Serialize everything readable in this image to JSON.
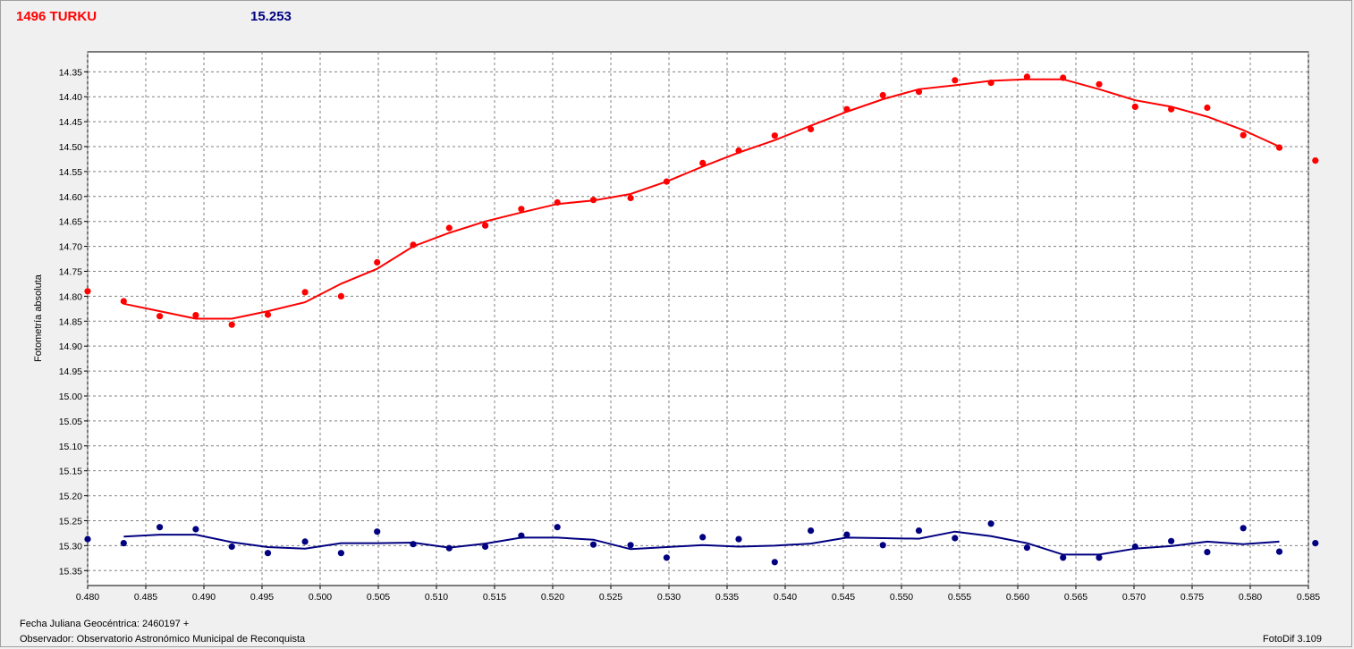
{
  "header": {
    "object_name": "1496 TURKU",
    "comparison_value": "15.253"
  },
  "footer": {
    "jd_label": "Fecha Juliana Geocéntrica: 2460197 +",
    "observer_label": "Observador: Observatorio Astronómico Municipal de Reconquista",
    "software": "FotoDif 3.109"
  },
  "colors": {
    "series_target": "#ff0000",
    "series_comparison": "#000080",
    "grid": "#808080",
    "plot_bg": "#ffffff"
  },
  "chart_data": {
    "type": "scatter",
    "ylabel": "Fotometría absoluta",
    "xlabel": "",
    "xlim": [
      0.48,
      0.585
    ],
    "ylim": [
      15.38,
      14.31
    ],
    "y_inverted": true,
    "x_ticks": [
      "0.480",
      "0.485",
      "0.490",
      "0.495",
      "0.500",
      "0.505",
      "0.510",
      "0.515",
      "0.520",
      "0.525",
      "0.530",
      "0.535",
      "0.540",
      "0.545",
      "0.550",
      "0.555",
      "0.560",
      "0.565",
      "0.570",
      "0.575",
      "0.580",
      "0.585"
    ],
    "y_ticks": [
      "14.35",
      "14.40",
      "14.45",
      "14.50",
      "14.55",
      "14.60",
      "14.65",
      "14.70",
      "14.75",
      "14.80",
      "14.85",
      "14.90",
      "14.95",
      "15.00",
      "15.05",
      "15.10",
      "15.15",
      "15.20",
      "15.25",
      "15.30",
      "15.35"
    ],
    "grid": true,
    "series": [
      {
        "color": "#ff0000",
        "points": {
          "x": [
            0.48,
            0.4831,
            0.4862,
            0.4893,
            0.4924,
            0.4955,
            0.4987,
            0.5018,
            0.5049,
            0.508,
            0.5111,
            0.5142,
            0.5173,
            0.5204,
            0.5235,
            0.5267,
            0.5298,
            0.5329,
            0.536,
            0.5391,
            0.5422,
            0.5453,
            0.5484,
            0.5515,
            0.5546,
            0.5577,
            0.5608,
            0.5639,
            0.567,
            0.5701,
            0.5732,
            0.5763,
            0.5794,
            0.5825,
            0.5856
          ],
          "y": [
            14.79,
            14.81,
            14.84,
            14.838,
            14.857,
            14.837,
            14.792,
            14.8,
            14.732,
            14.697,
            14.663,
            14.658,
            14.625,
            14.612,
            14.607,
            14.603,
            14.57,
            14.533,
            14.508,
            14.478,
            14.465,
            14.425,
            14.397,
            14.39,
            14.367,
            14.372,
            14.36,
            14.362,
            14.375,
            14.42,
            14.425,
            14.422,
            14.477,
            14.502,
            14.528
          ]
        },
        "fit": {
          "x": [
            0.4831,
            0.4862,
            0.4893,
            0.4924,
            0.4955,
            0.4987,
            0.5018,
            0.5049,
            0.508,
            0.5111,
            0.5142,
            0.5173,
            0.5204,
            0.5235,
            0.5267,
            0.5298,
            0.5329,
            0.536,
            0.5391,
            0.5422,
            0.5453,
            0.5484,
            0.5515,
            0.5546,
            0.5577,
            0.5608,
            0.5639,
            0.567,
            0.5701,
            0.5732,
            0.5763,
            0.5794,
            0.5825
          ],
          "y": [
            14.815,
            14.83,
            14.845,
            14.845,
            14.83,
            14.812,
            14.775,
            14.745,
            14.7,
            14.673,
            14.65,
            14.632,
            14.615,
            14.608,
            14.595,
            14.57,
            14.54,
            14.512,
            14.487,
            14.458,
            14.43,
            14.405,
            14.385,
            14.377,
            14.368,
            14.365,
            14.365,
            14.385,
            14.407,
            14.42,
            14.44,
            14.467,
            14.5
          ]
        }
      },
      {
        "color": "#000080",
        "points": {
          "x": [
            0.48,
            0.4831,
            0.4862,
            0.4893,
            0.4924,
            0.4955,
            0.4987,
            0.5018,
            0.5049,
            0.508,
            0.5111,
            0.5142,
            0.5173,
            0.5204,
            0.5235,
            0.5267,
            0.5298,
            0.5329,
            0.536,
            0.5391,
            0.5422,
            0.5453,
            0.5484,
            0.5515,
            0.5546,
            0.5577,
            0.5608,
            0.5639,
            0.567,
            0.5701,
            0.5732,
            0.5763,
            0.5794,
            0.5825,
            0.5856
          ],
          "y": [
            15.287,
            15.295,
            15.263,
            15.267,
            15.302,
            15.315,
            15.292,
            15.315,
            15.272,
            15.297,
            15.305,
            15.302,
            15.28,
            15.263,
            15.298,
            15.299,
            15.324,
            15.283,
            15.287,
            15.333,
            15.27,
            15.278,
            15.299,
            15.27,
            15.285,
            15.256,
            15.304,
            15.324,
            15.324,
            15.302,
            15.291,
            15.313,
            15.265,
            15.312,
            15.295
          ]
        },
        "fit": {
          "x": [
            0.4831,
            0.4862,
            0.4893,
            0.4924,
            0.4955,
            0.4987,
            0.5018,
            0.5049,
            0.508,
            0.5111,
            0.5142,
            0.5173,
            0.5204,
            0.5235,
            0.5267,
            0.5298,
            0.5329,
            0.536,
            0.5391,
            0.5422,
            0.5453,
            0.5484,
            0.5515,
            0.5546,
            0.5577,
            0.5608,
            0.5639,
            0.567,
            0.5701,
            0.5732,
            0.5763,
            0.5794,
            0.5825
          ],
          "y": [
            15.282,
            15.278,
            15.278,
            15.293,
            15.303,
            15.306,
            15.295,
            15.295,
            15.294,
            15.304,
            15.296,
            15.284,
            15.284,
            15.288,
            15.307,
            15.303,
            15.299,
            15.302,
            15.3,
            15.296,
            15.284,
            15.285,
            15.286,
            15.272,
            15.281,
            15.295,
            15.318,
            15.318,
            15.306,
            15.301,
            15.292,
            15.297,
            15.292
          ]
        }
      }
    ]
  }
}
